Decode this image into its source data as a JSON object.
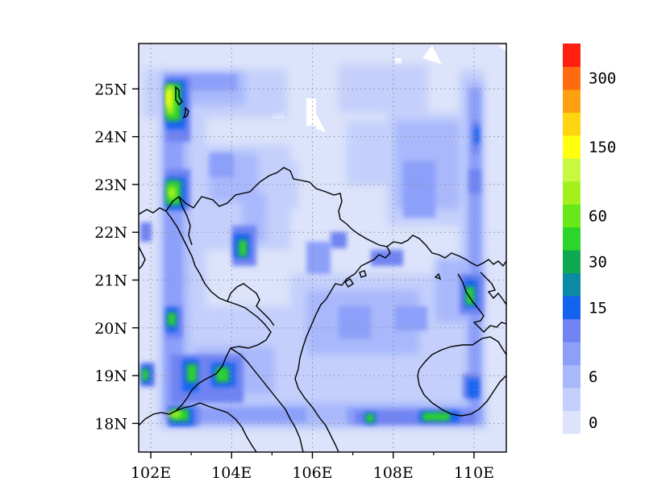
{
  "map": {
    "lon_range": [
      101.7,
      110.8
    ],
    "lat_range": [
      17.4,
      25.95
    ],
    "lat_ticks": [
      {
        "value": 18,
        "label": "18N"
      },
      {
        "value": 19,
        "label": "19N"
      },
      {
        "value": 20,
        "label": "20N"
      },
      {
        "value": 21,
        "label": "21N"
      },
      {
        "value": 22,
        "label": "22N"
      },
      {
        "value": 23,
        "label": "23N"
      },
      {
        "value": 24,
        "label": "24N"
      },
      {
        "value": 25,
        "label": "25N"
      }
    ],
    "lon_ticks": [
      {
        "value": 102,
        "label": "102E"
      },
      {
        "value": 104,
        "label": "104E"
      },
      {
        "value": 106,
        "label": "106E"
      },
      {
        "value": 108,
        "label": "108E"
      },
      {
        "value": 110,
        "label": "110E"
      }
    ],
    "grid": true,
    "background_color": "#dce3fa"
  },
  "colorbar": {
    "colors": [
      "#dce3fa",
      "#c4d0fb",
      "#a8b8fb",
      "#8c9ff9",
      "#6f83f2",
      "#1463f0",
      "#0a8aa4",
      "#10a850",
      "#2cd42c",
      "#68e818",
      "#a4f01c",
      "#c8f840",
      "#ffff10",
      "#ffd410",
      "#ffa010",
      "#ff6c10",
      "#ff2010"
    ],
    "labels": [
      {
        "index": 0,
        "text": "0"
      },
      {
        "index": 2,
        "text": "6"
      },
      {
        "index": 5,
        "text": "15"
      },
      {
        "index": 7,
        "text": "30"
      },
      {
        "index": 9,
        "text": "60"
      },
      {
        "index": 12,
        "text": "150"
      },
      {
        "index": 15,
        "text": "300"
      }
    ]
  }
}
